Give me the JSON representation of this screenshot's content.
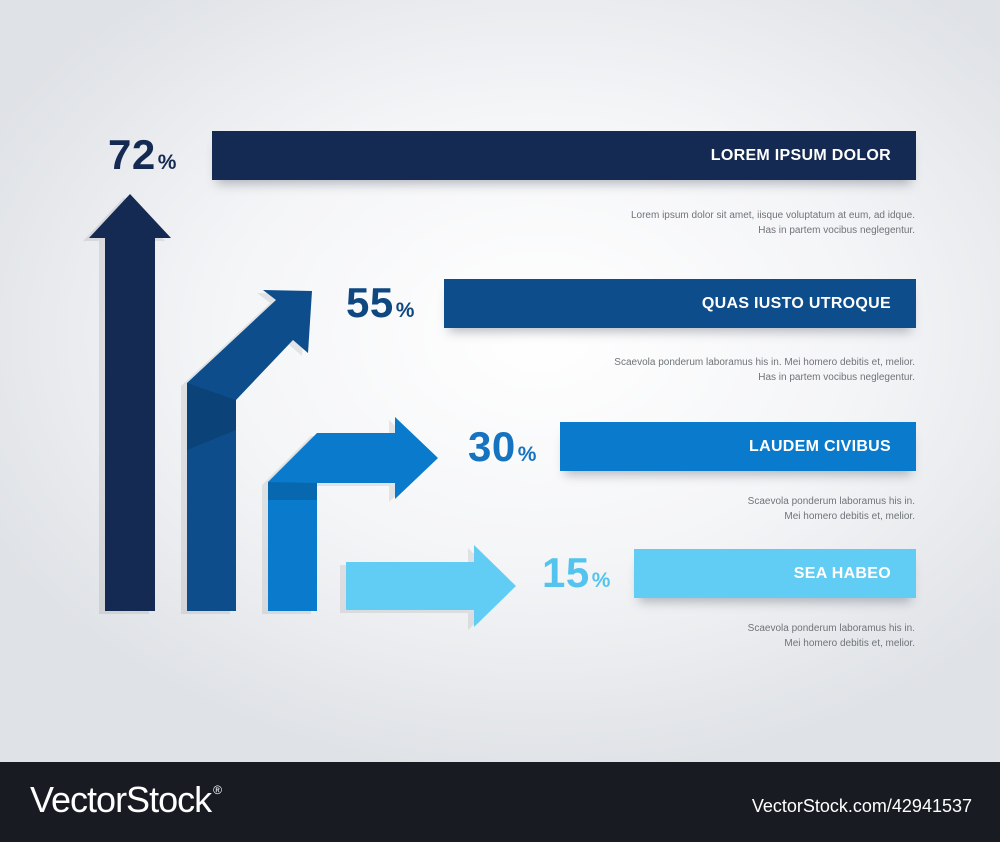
{
  "chart_data": {
    "type": "bar",
    "categories": [
      "LOREM IPSUM DOLOR",
      "QUAS IUSTO UTROQUE",
      "LAUDEM CIVIBUS",
      "SEA HABEO"
    ],
    "values": [
      72,
      55,
      30,
      15
    ],
    "unit": "%",
    "series": [
      {
        "label": "LOREM IPSUM DOLOR",
        "value": 72,
        "color": "#152a52",
        "desc": [
          "Lorem ipsum dolor sit amet, iisque voluptatum at eum, ad idque.",
          "Has in partem vocibus neglegentur."
        ]
      },
      {
        "label": "QUAS IUSTO UTROQUE",
        "value": 55,
        "color": "#0d4d8c",
        "desc": [
          "Scaevola ponderum laboramus his in. Mei homero debitis et, melior.",
          "Has in partem vocibus neglegentur."
        ]
      },
      {
        "label": "LAUDEM CIVIBUS",
        "value": 30,
        "color": "#0a7acc",
        "desc": [
          "Scaevola ponderum laboramus his in.",
          "Mei homero debitis et, melior."
        ]
      },
      {
        "label": "SEA HABEO",
        "value": 15,
        "color": "#62cdf4",
        "desc": [
          "Scaevola ponderum laboramus his in.",
          "Mei homero debitis et, melior."
        ]
      }
    ]
  },
  "watermark": {
    "brand": "VectorStock",
    "mark": "®",
    "id_text": "VectorStock.com/42941537"
  }
}
